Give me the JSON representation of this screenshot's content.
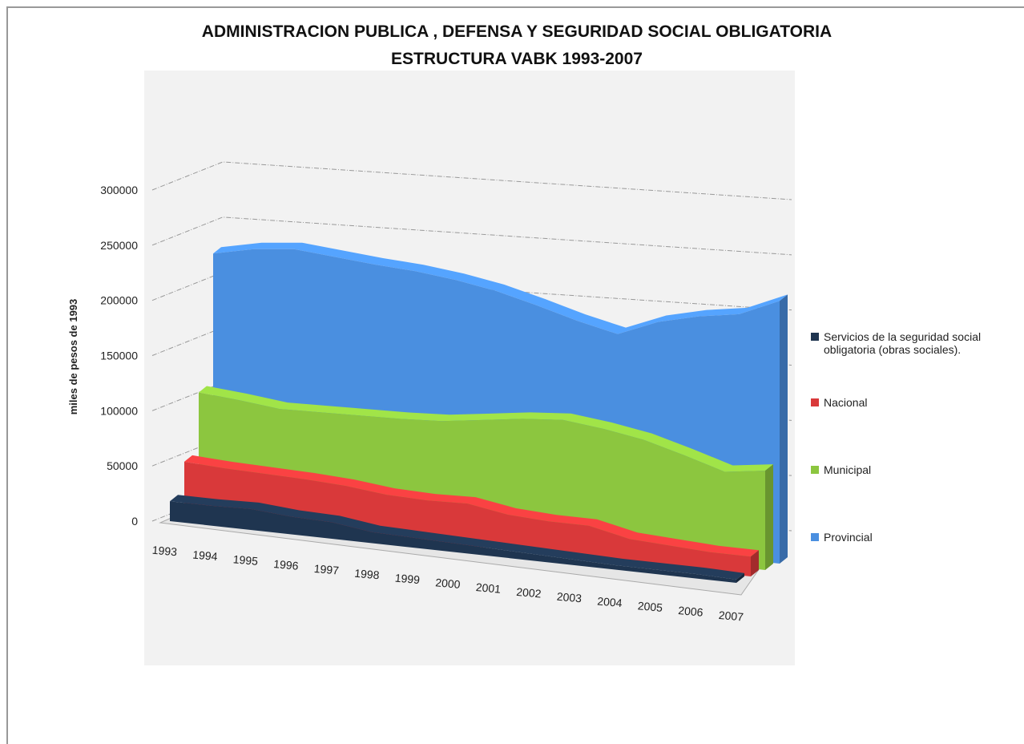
{
  "chart_data": {
    "type": "area3d",
    "title": "ADMINISTRACION PUBLICA , DEFENSA Y SEGURIDAD SOCIAL OBLIGATORIA",
    "subtitle": "ESTRUCTURA VABK 1993-2007",
    "y_label": "miles de pesos de 1993",
    "categories": [
      "1993",
      "1994",
      "1995",
      "1996",
      "1997",
      "1998",
      "1999",
      "2000",
      "2001",
      "2002",
      "2003",
      "2004",
      "2005",
      "2006",
      "2007"
    ],
    "ylim": [
      0,
      300000
    ],
    "yticks": [
      0,
      50000,
      100000,
      150000,
      200000,
      250000,
      300000
    ],
    "grid": true,
    "legend": "right",
    "series": [
      {
        "name": "Servicios de la seguridad social obligatoria (obras sociales).",
        "color": "#1f3550",
        "values": [
          18000,
          18000,
          19000,
          16000,
          15000,
          10000,
          9000,
          8000,
          7000,
          6000,
          5000,
          4000,
          4000,
          4000,
          3000
        ]
      },
      {
        "name": "Nacional",
        "color": "#d9393a",
        "values": [
          48000,
          46000,
          45000,
          44000,
          42000,
          38000,
          37000,
          38000,
          32000,
          30000,
          30000,
          22000,
          20000,
          18000,
          18000
        ]
      },
      {
        "name": "Municipal",
        "color": "#8cc63f",
        "values": [
          105000,
          102000,
          98000,
          99000,
          100000,
          101000,
          103000,
          108000,
          113000,
          116000,
          112000,
          106000,
          96000,
          85000,
          90000
        ]
      },
      {
        "name": "Provincial",
        "color": "#4a8fe0",
        "values": [
          225000,
          233000,
          237000,
          234000,
          231000,
          229000,
          225000,
          219000,
          210000,
          200000,
          192000,
          207000,
          216000,
          222000,
          238000
        ]
      }
    ]
  }
}
